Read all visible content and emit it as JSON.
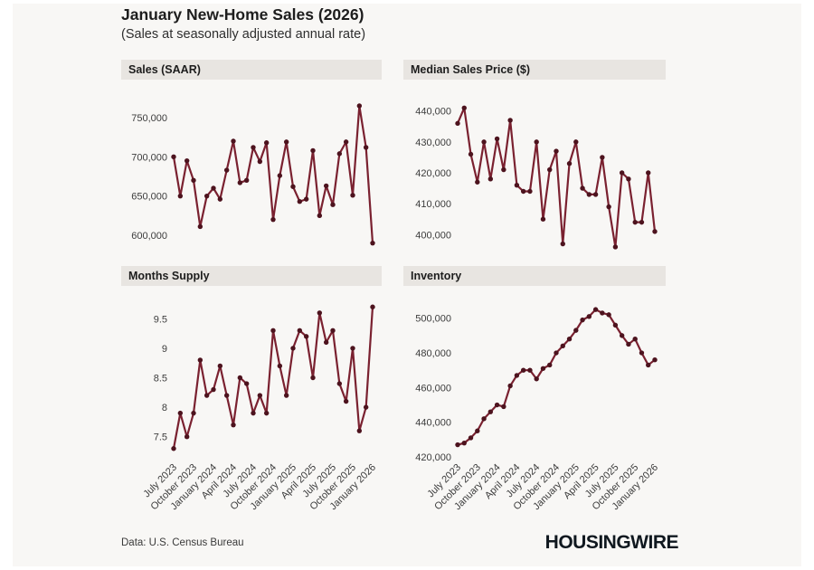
{
  "title": "January New-Home Sales (2026)",
  "subtitle": "(Sales at seasonally adjusted annual rate)",
  "footer": {
    "source": "Data: U.S. Census Bureau",
    "brand": "HOUSINGWIRE"
  },
  "colors": {
    "line": "#7a2130",
    "dot": "#4d131e",
    "panel_header_bg": "#e8e5e1",
    "canvas_bg": "#f8f7f5"
  },
  "x_tick_labels": [
    "July 2023",
    "October 2023",
    "January 2024",
    "April 2024",
    "July 2024",
    "October 2024",
    "January 2025",
    "April 2025",
    "July 2025",
    "October 2025",
    "January 2026"
  ],
  "chart_data": [
    {
      "type": "line",
      "title": "Sales (SAAR)",
      "categories": [
        "July 2023",
        "August 2023",
        "September 2023",
        "October 2023",
        "November 2023",
        "December 2023",
        "January 2024",
        "February 2024",
        "March 2024",
        "April 2024",
        "May 2024",
        "June 2024",
        "July 2024",
        "August 2024",
        "September 2024",
        "October 2024",
        "November 2024",
        "December 2024",
        "January 2025",
        "February 2025",
        "March 2025",
        "April 2025",
        "May 2025",
        "June 2025",
        "July 2025",
        "August 2025",
        "September 2025",
        "October 2025",
        "November 2025",
        "December 2025",
        "January 2026"
      ],
      "values": [
        700000,
        650000,
        695000,
        670000,
        611000,
        650000,
        660000,
        646000,
        683000,
        720000,
        667000,
        670000,
        712000,
        694000,
        718000,
        620000,
        676000,
        719000,
        662000,
        643000,
        646000,
        708000,
        625000,
        663000,
        639000,
        704000,
        719000,
        651000,
        765000,
        712000,
        590000
      ],
      "y_ticks": [
        600000,
        650000,
        700000,
        750000
      ],
      "ylim": [
        585000,
        770000
      ],
      "grid": false,
      "legend": "none"
    },
    {
      "type": "line",
      "title": "Median Sales Price ($)",
      "categories": [
        "July 2023",
        "August 2023",
        "September 2023",
        "October 2023",
        "November 2023",
        "December 2023",
        "January 2024",
        "February 2024",
        "March 2024",
        "April 2024",
        "May 2024",
        "June 2024",
        "July 2024",
        "August 2024",
        "September 2024",
        "October 2024",
        "November 2024",
        "December 2024",
        "January 2025",
        "February 2025",
        "March 2025",
        "April 2025",
        "May 2025",
        "June 2025",
        "July 2025",
        "August 2025",
        "September 2025",
        "October 2025",
        "November 2025",
        "December 2025",
        "January 2026"
      ],
      "values": [
        436000,
        441000,
        426000,
        417000,
        430000,
        418000,
        431000,
        421000,
        437000,
        416000,
        414000,
        414000,
        430000,
        405000,
        421000,
        427000,
        397000,
        423000,
        430000,
        415000,
        413000,
        413000,
        425000,
        409000,
        396000,
        420000,
        418000,
        404000,
        404000,
        420000,
        401000
      ],
      "y_ticks": [
        400000,
        410000,
        420000,
        430000,
        440000
      ],
      "ylim": [
        394000,
        443000
      ],
      "grid": false,
      "legend": "none"
    },
    {
      "type": "line",
      "title": "Months Supply",
      "categories": [
        "July 2023",
        "August 2023",
        "September 2023",
        "October 2023",
        "November 2023",
        "December 2023",
        "January 2024",
        "February 2024",
        "March 2024",
        "April 2024",
        "May 2024",
        "June 2024",
        "July 2024",
        "August 2024",
        "September 2024",
        "October 2024",
        "November 2024",
        "December 2024",
        "January 2025",
        "February 2025",
        "March 2025",
        "April 2025",
        "May 2025",
        "June 2025",
        "July 2025",
        "August 2025",
        "September 2025",
        "October 2025",
        "November 2025",
        "December 2025",
        "January 2026"
      ],
      "values": [
        7.3,
        7.9,
        7.5,
        7.9,
        8.8,
        8.2,
        8.3,
        8.7,
        8.2,
        7.7,
        8.5,
        8.4,
        7.9,
        8.2,
        7.9,
        9.3,
        8.7,
        8.2,
        9.0,
        9.3,
        9.2,
        8.5,
        9.6,
        9.1,
        9.3,
        8.4,
        8.1,
        9.0,
        7.6,
        8.0,
        9.7
      ],
      "y_ticks": [
        7.5,
        8,
        8.5,
        9,
        9.5
      ],
      "ylim": [
        7.2,
        9.8
      ],
      "grid": false,
      "legend": "none"
    },
    {
      "type": "line",
      "title": "Inventory",
      "categories": [
        "July 2023",
        "August 2023",
        "September 2023",
        "October 2023",
        "November 2023",
        "December 2023",
        "January 2024",
        "February 2024",
        "March 2024",
        "April 2024",
        "May 2024",
        "June 2024",
        "July 2024",
        "August 2024",
        "September 2024",
        "October 2024",
        "November 2024",
        "December 2024",
        "January 2025",
        "February 2025",
        "March 2025",
        "April 2025",
        "May 2025",
        "June 2025",
        "July 2025",
        "August 2025",
        "September 2025",
        "October 2025",
        "November 2025",
        "December 2025",
        "January 2026"
      ],
      "values": [
        427000,
        428000,
        431000,
        435000,
        442000,
        446000,
        450000,
        449000,
        461000,
        467000,
        470000,
        470000,
        465000,
        471000,
        473000,
        480000,
        484000,
        488000,
        493000,
        499000,
        501000,
        505000,
        503000,
        502000,
        496000,
        490000,
        485000,
        488000,
        480000,
        473000,
        476000
      ],
      "y_ticks": [
        420000,
        440000,
        460000,
        480000,
        500000
      ],
      "ylim": [
        418000,
        508000
      ],
      "grid": false,
      "legend": "none"
    }
  ]
}
